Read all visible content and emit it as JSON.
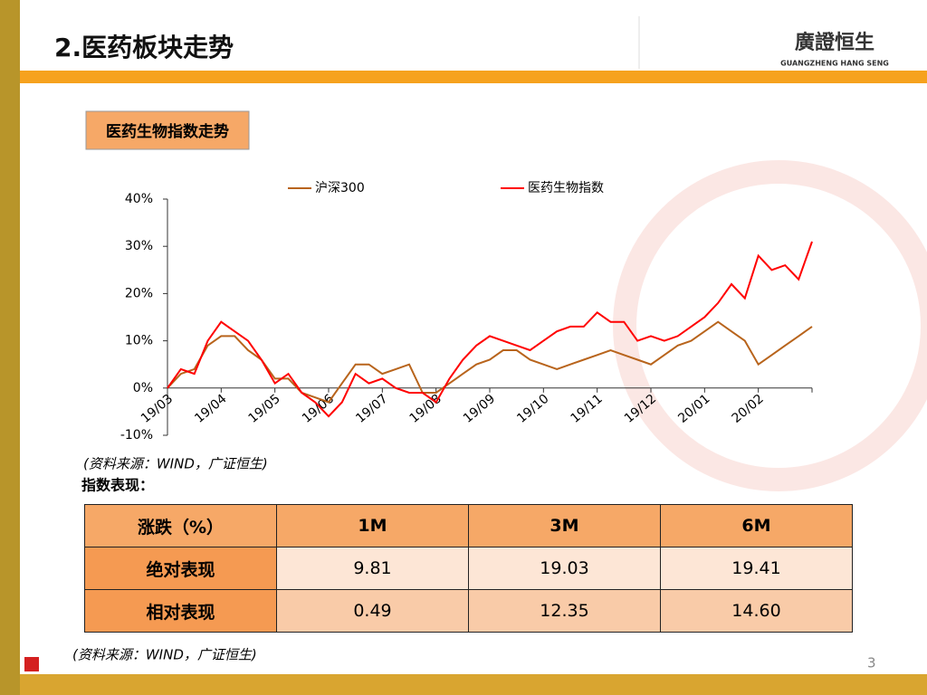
{
  "header": {
    "title": "2.医药板块走势",
    "logo": "廣證恒生",
    "logo_sub": "GUANGZHENG HANG SENG"
  },
  "section_label": "医药生物指数走势",
  "chart_data": {
    "type": "line",
    "categories": [
      "19/03",
      null,
      null,
      null,
      "19/04",
      null,
      null,
      null,
      "19/05",
      null,
      null,
      null,
      "19/06",
      null,
      null,
      null,
      "19/07",
      null,
      null,
      null,
      "19/08",
      null,
      null,
      null,
      "19/09",
      null,
      null,
      null,
      "19/10",
      null,
      null,
      null,
      "19/11",
      null,
      null,
      null,
      "19/12",
      null,
      null,
      null,
      "20/01",
      null,
      null,
      null,
      "20/02",
      null,
      null,
      null,
      null
    ],
    "series": [
      {
        "name": "沪深300",
        "color": "#b8641c",
        "values": [
          0,
          3,
          4,
          9,
          11,
          11,
          8,
          6,
          2,
          2,
          -1,
          -2,
          -3,
          1,
          5,
          5,
          3,
          4,
          5,
          -1,
          -1,
          1,
          3,
          5,
          6,
          8,
          8,
          6,
          5,
          4,
          5,
          6,
          7,
          8,
          7,
          6,
          5,
          7,
          9,
          10,
          12,
          14,
          12,
          10,
          5,
          7,
          9,
          11,
          13
        ]
      },
      {
        "name": "医药生物指数",
        "color": "#ff0000",
        "values": [
          0,
          4,
          3,
          10,
          14,
          12,
          10,
          6,
          1,
          3,
          -1,
          -3,
          -6,
          -3,
          3,
          1,
          2,
          0,
          -1,
          -1,
          -3,
          2,
          6,
          9,
          11,
          10,
          9,
          8,
          10,
          12,
          13,
          13,
          16,
          14,
          14,
          10,
          11,
          10,
          11,
          13,
          15,
          18,
          22,
          19,
          28,
          25,
          26,
          23,
          31
        ]
      }
    ],
    "ylim": [
      -10,
      40
    ],
    "yticks": [
      {
        "value": -10,
        "label": "-10%"
      },
      {
        "value": 0,
        "label": "0%"
      },
      {
        "value": 10,
        "label": "10%"
      },
      {
        "value": 20,
        "label": "20%"
      },
      {
        "value": 30,
        "label": "30%"
      },
      {
        "value": 40,
        "label": "40%"
      }
    ]
  },
  "source1": "(资料来源：WIND，广证恒生)",
  "table_title": "指数表现：",
  "table": {
    "header": [
      "涨跌（%）",
      "1M",
      "3M",
      "6M"
    ],
    "rows": [
      [
        "绝对表现",
        "9.81",
        "19.03",
        "19.41"
      ],
      [
        "相对表现",
        "0.49",
        "12.35",
        "14.60"
      ]
    ]
  },
  "source2": "(资料来源：WIND，广证恒生)",
  "page_number": "3"
}
